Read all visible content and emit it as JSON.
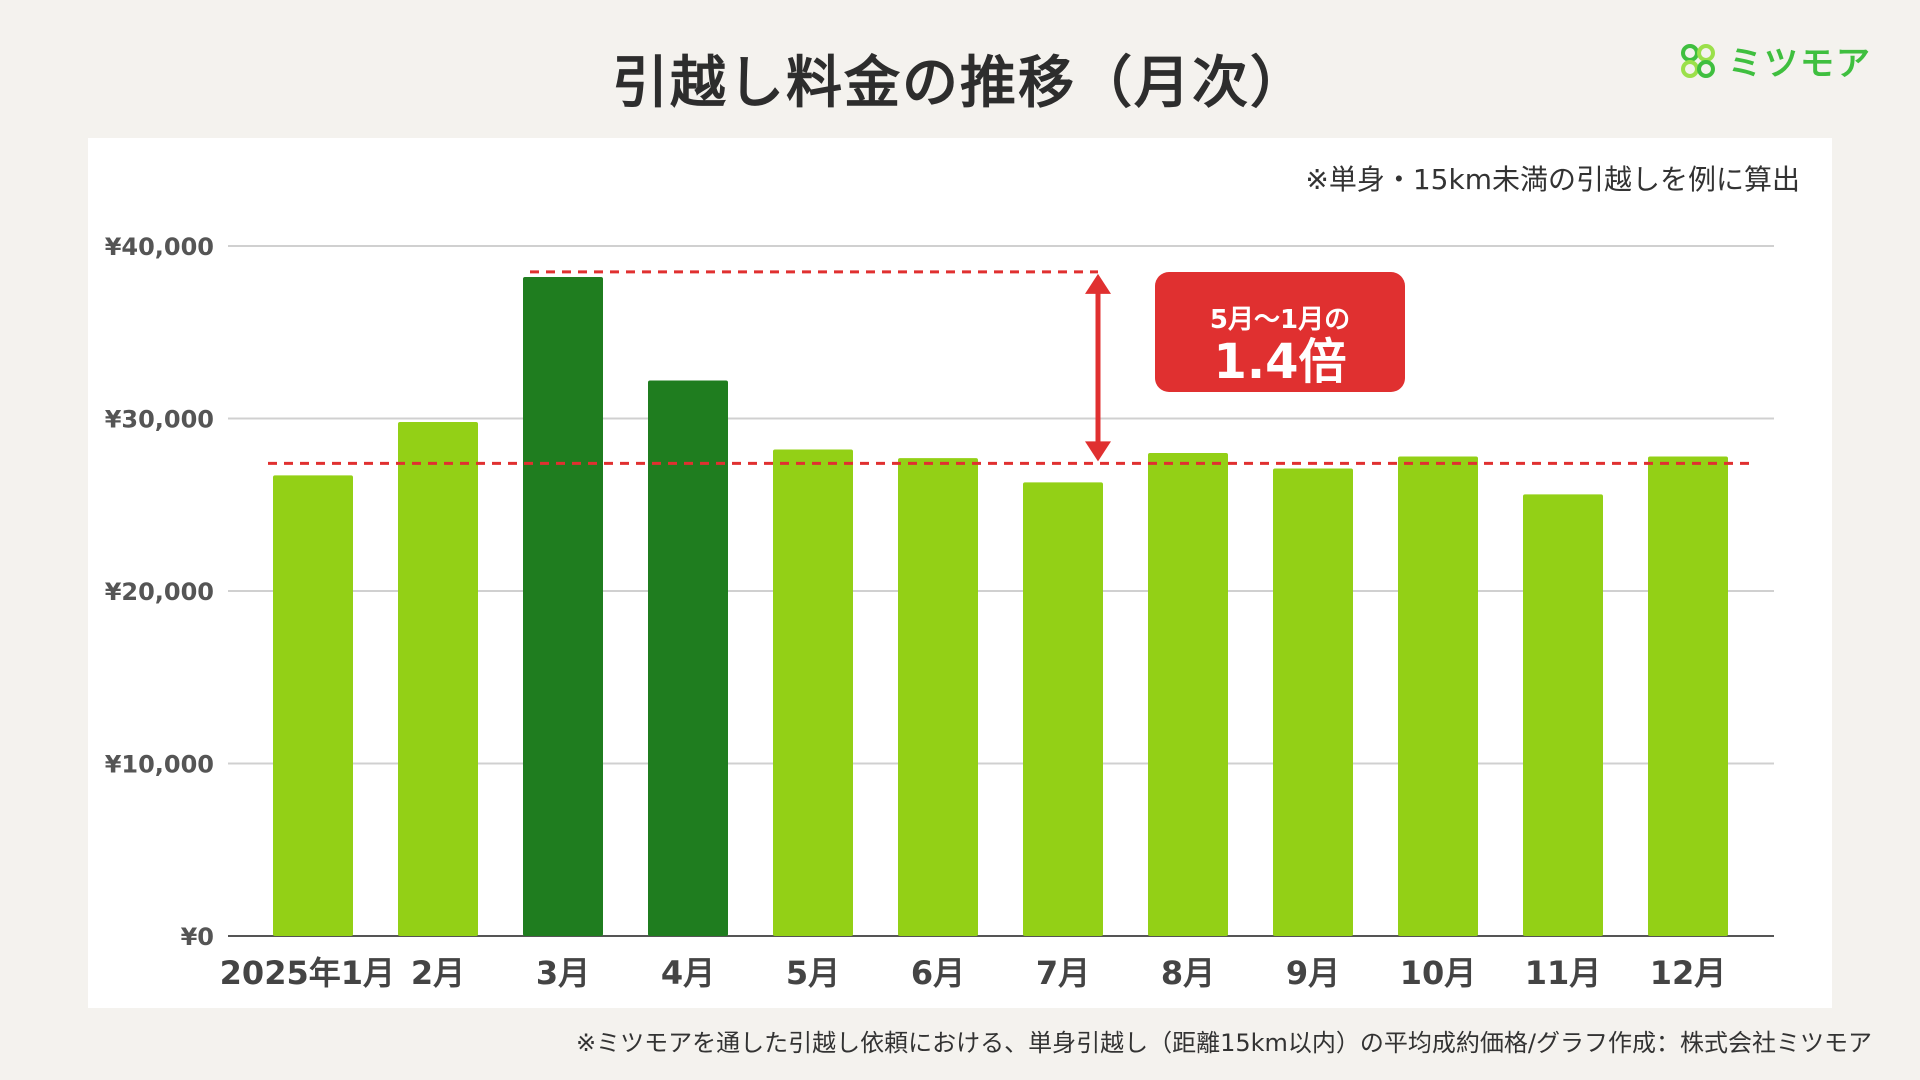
{
  "title": "引越し料金の推移（月次）",
  "logo": {
    "text": "ミツモア",
    "icon": "mitsumoa-logo-icon"
  },
  "note": "※単身・15km未満の引越しを例に算出",
  "footer": "※ミツモアを通した引越し依頼における、単身引越し（距離15km以内）の平均成約価格/グラフ作成：株式会社ミツモア",
  "annotation": {
    "line1": "5月〜1月の",
    "line2": "1.4倍"
  },
  "colors": {
    "bar": "#93d016",
    "highlight": "#1f7d1f",
    "accent": "#e03030",
    "grid": "#d0d0d0"
  },
  "chart_data": {
    "type": "bar",
    "categories": [
      "2025年1月",
      "2月",
      "3月",
      "4月",
      "5月",
      "6月",
      "7月",
      "8月",
      "9月",
      "10月",
      "11月",
      "12月"
    ],
    "values": [
      26700,
      29800,
      38200,
      32200,
      28200,
      27700,
      26300,
      28000,
      27100,
      27800,
      25600,
      27800
    ],
    "highlighted": [
      "3月",
      "4月"
    ],
    "yticks": [
      "¥0",
      "¥10,000",
      "¥20,000",
      "¥30,000",
      "¥40,000"
    ],
    "ylim": [
      0,
      40000
    ],
    "reference_lines": [
      38500,
      27400
    ],
    "grid": true
  }
}
